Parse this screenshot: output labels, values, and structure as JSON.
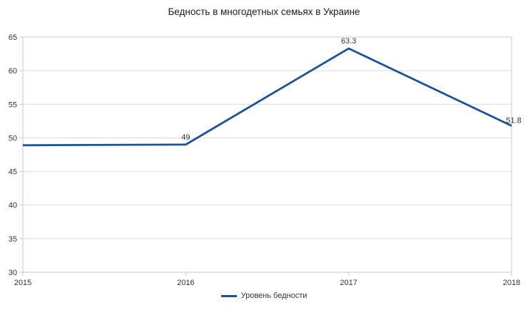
{
  "title": "Бедность в многодетных семьях в Украине",
  "legend": {
    "series_label": "Уровень бедности"
  },
  "colors": {
    "line": "#1b5298",
    "grid": "#dcdcdc",
    "border": "#c8c8c8",
    "text": "#333333",
    "title_text": "#1a1a1a"
  },
  "chart_data": {
    "type": "line",
    "title": "Бедность в многодетных семьях в Украине",
    "x": [
      "2015",
      "2016",
      "2017",
      "2018"
    ],
    "series": [
      {
        "name": "Уровень бедности",
        "values": [
          48.9,
          49,
          63.3,
          51.8
        ]
      }
    ],
    "point_labels": [
      "",
      "49",
      "63.3",
      "51.8"
    ],
    "xlabel": "",
    "ylabel": "",
    "ylim": [
      30,
      65
    ],
    "ytick_step": 5,
    "yticks": [
      30,
      35,
      40,
      45,
      50,
      55,
      60,
      65
    ],
    "grid": "horizontal",
    "legend_position": "bottom"
  }
}
